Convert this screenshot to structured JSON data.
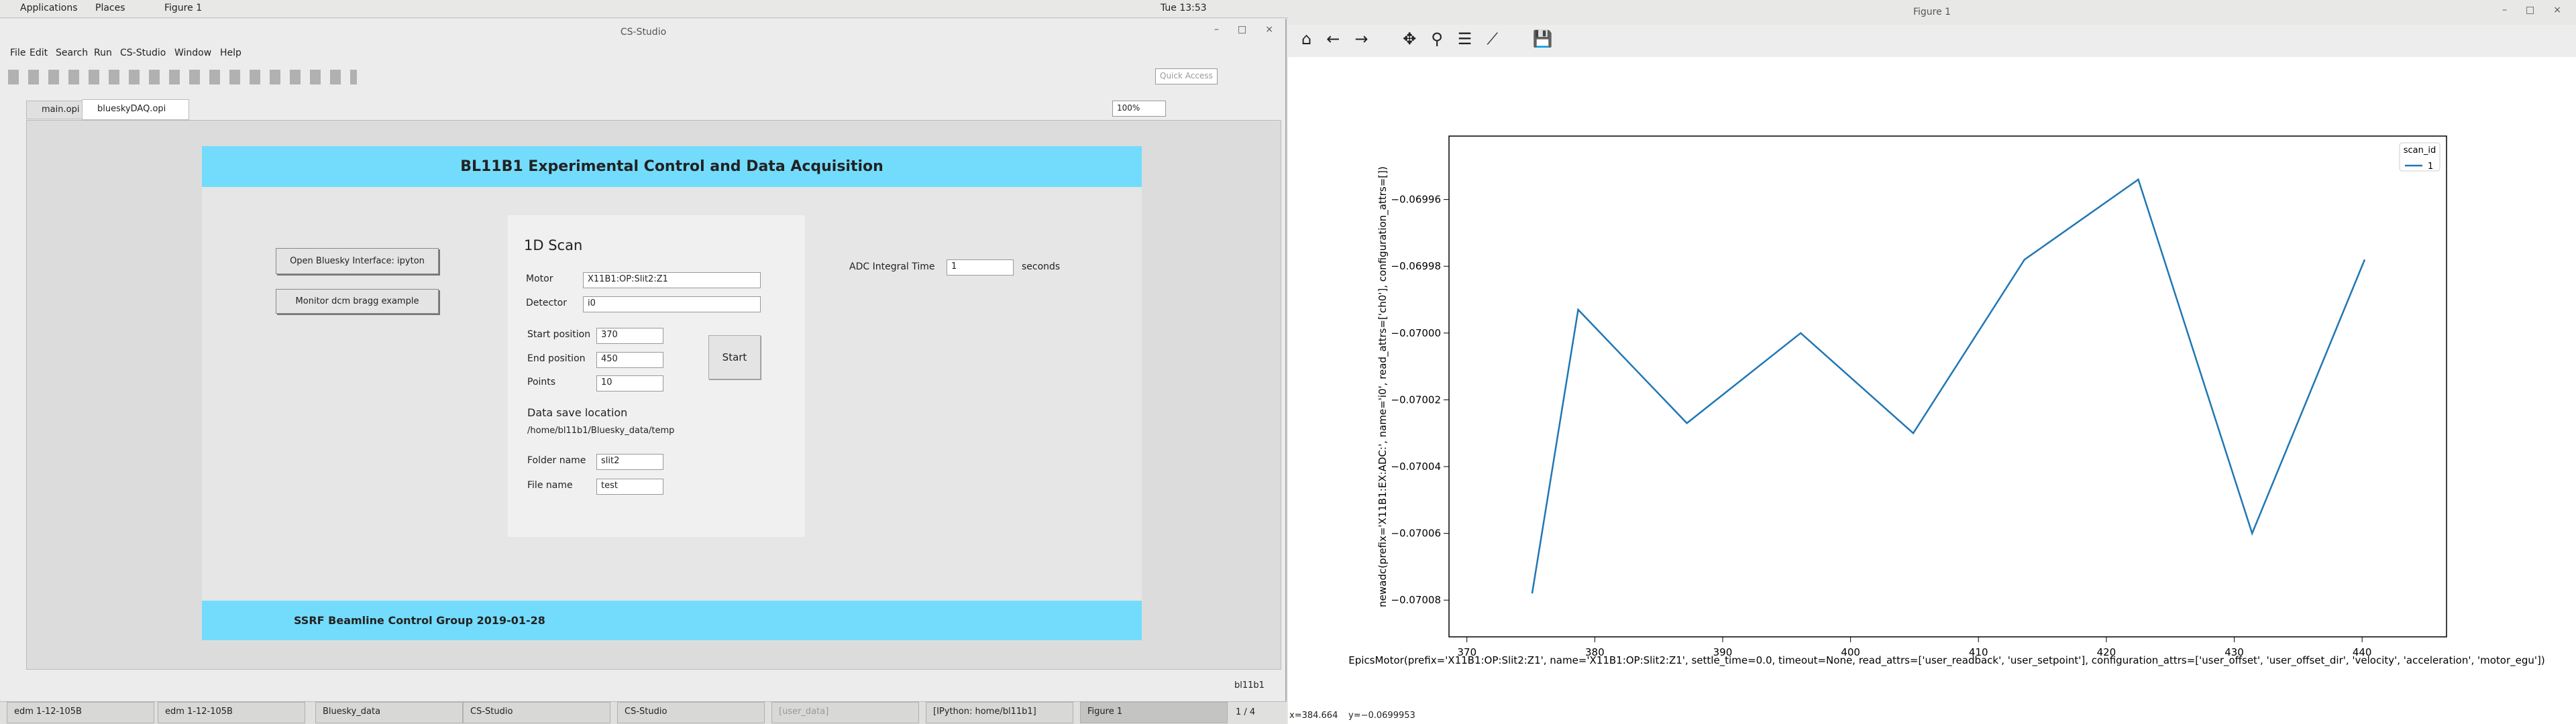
{
  "top_bar": {
    "applications": "Applications",
    "places": "Places",
    "active_app": "Figure 1",
    "clock": "Tue 13:53"
  },
  "cs_studio": {
    "title": "CS-Studio",
    "menu": [
      "File",
      "Edit",
      "Search",
      "Run",
      "CS-Studio",
      "Window",
      "Help"
    ],
    "quick_access": "Quick Access",
    "tabs": [
      "main.opi",
      "blueskyDAQ.opi"
    ],
    "zoom": "100%",
    "opi": {
      "title": "BL11B1 Experimental Control and Data Acquisition",
      "buttons": [
        "Open Bluesky Interface: ipyton",
        "Monitor dcm bragg example"
      ],
      "scan": {
        "heading": "1D Scan",
        "motor_label": "Motor",
        "motor": "X11B1:OP:Slit2:Z1",
        "detector_label": "Detector",
        "detector": "i0",
        "start_label": "Start position",
        "start": 370,
        "end_label": "End position",
        "end": 450,
        "points_label": "Points",
        "points": 10,
        "start_button": "Start",
        "save_heading": "Data save location",
        "save_path": "/home/bl11b1/Bluesky_data/temp",
        "folder_label": "Folder name",
        "folder": "slit2",
        "file_label": "File name",
        "file": "test"
      },
      "adc_label": "ADC Integral Time",
      "adc": 1,
      "adc_unit": "seconds",
      "footer": "SSRF Beamline Control Group 2019-01-28"
    },
    "status_user": "bl11b1"
  },
  "figure_window": {
    "title": "Figure 1",
    "cursor_x": "x=384.664",
    "cursor_y": "y=−0.0699953"
  },
  "taskbar": {
    "items": [
      "edm 1-12-105B",
      "edm 1-12-105B",
      "Bluesky_data",
      "CS-Studio",
      "CS-Studio",
      "[user_data]",
      "[IPython: home/bl11b1]",
      "Figure 1"
    ],
    "workspace": "1 / 4"
  },
  "chart_data": {
    "type": "line",
    "x_label": "EpicsMotor(prefix='X11B1:OP:Slit2:Z1', name='X11B1:OP:Slit2:Z1', settle_time=0.0, timeout=None, read_attrs=['user_readback', 'user_setpoint'], configuration_attrs=['user_offset', 'user_offset_dir', 'velocity', 'acceleration', 'motor_egu'])",
    "y_label": "newadc(prefix='X11B1:EX:ADC:', name='i0', read_attrs=['ch0'], configuration_attrs=[])",
    "legend_title": "scan_id",
    "legend": "upper right",
    "x": [
      375.1,
      378.7,
      387.2,
      396.1,
      404.9,
      413.6,
      422.5,
      431.4,
      440.2
    ],
    "series": [
      {
        "name": "1",
        "color": "#1f77b4",
        "values": [
          -0.070078,
          -0.069993,
          -0.070027,
          -0.07,
          -0.07003,
          -0.069978,
          -0.069954,
          -0.07006,
          -0.069978
        ]
      }
    ],
    "xlim": [
      368.6,
      446.6
    ],
    "ylim": [
      -0.070091,
      -0.069941
    ],
    "xticks": [
      370,
      380,
      390,
      400,
      410,
      420,
      430,
      440
    ],
    "yticks": [
      {
        "value": -0.07008,
        "label": "−0.07008"
      },
      {
        "value": -0.07006,
        "label": "−0.07006"
      },
      {
        "value": -0.07004,
        "label": "−0.07004"
      },
      {
        "value": -0.07002,
        "label": "−0.07002"
      },
      {
        "value": -0.07,
        "label": "−0.07000"
      },
      {
        "value": -0.06998,
        "label": "−0.06998"
      },
      {
        "value": -0.06996,
        "label": "−0.06996"
      }
    ],
    "grid": false
  }
}
